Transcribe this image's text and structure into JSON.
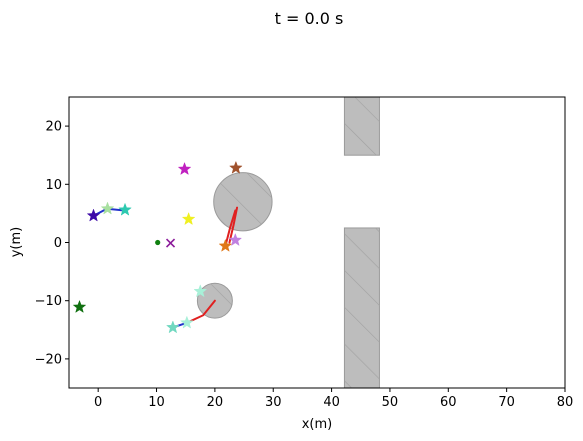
{
  "chart_data": {
    "type": "scatter",
    "title": "t = 0.0 s",
    "xlabel": "x(m)",
    "ylabel": "y(m)",
    "xlim": [
      -5,
      80
    ],
    "ylim": [
      -25,
      25
    ],
    "grid": false,
    "x_ticks": [
      0,
      10,
      20,
      30,
      40,
      50,
      60,
      70,
      80
    ],
    "y_ticks": [
      -20,
      -10,
      0,
      10,
      20
    ],
    "obstacles": {
      "walls": [
        {
          "x0": 42.2,
          "x1": 48.2,
          "y0": 15.0,
          "y1": 25.0
        },
        {
          "x0": 42.2,
          "x1": 48.2,
          "y0": -25.0,
          "y1": 2.5
        }
      ],
      "circles": [
        {
          "cx": 24.8,
          "cy": 7.0,
          "r": 5.0
        },
        {
          "cx": 20.0,
          "cy": -10.0,
          "r": 3.0
        }
      ]
    },
    "trajectories": [
      {
        "color": "#2233cc",
        "points": [
          [
            -0.8,
            4.6
          ],
          [
            1.5,
            5.8
          ],
          [
            4.5,
            5.5
          ]
        ]
      },
      {
        "color": "#e02020",
        "points": [
          [
            22.5,
            0.0
          ],
          [
            23.2,
            3.0
          ],
          [
            23.8,
            6.0
          ]
        ]
      },
      {
        "color": "#e02020",
        "points": [
          [
            21.8,
            -0.6
          ],
          [
            22.6,
            2.5
          ],
          [
            23.5,
            5.5
          ]
        ]
      },
      {
        "color": "#2233cc",
        "points": [
          [
            12.8,
            -14.6
          ],
          [
            15.2,
            -13.8
          ]
        ]
      },
      {
        "color": "#e02020",
        "points": [
          [
            15.2,
            -13.8
          ],
          [
            18.0,
            -12.5
          ],
          [
            20.0,
            -10.0
          ]
        ]
      }
    ],
    "stars": [
      {
        "x": -0.8,
        "y": 4.6,
        "color": "#3d0aa8"
      },
      {
        "x": 1.6,
        "y": 5.8,
        "color": "#a8e0a0"
      },
      {
        "x": 4.6,
        "y": 5.6,
        "color": "#2ec9b0"
      },
      {
        "x": 14.8,
        "y": 12.6,
        "color": "#c020c0"
      },
      {
        "x": 23.6,
        "y": 12.8,
        "color": "#a0522d"
      },
      {
        "x": 15.5,
        "y": 4.0,
        "color": "#f0f020"
      },
      {
        "x": 21.8,
        "y": -0.6,
        "color": "#e07818"
      },
      {
        "x": 23.5,
        "y": 0.4,
        "color": "#c080e0"
      },
      {
        "x": 17.5,
        "y": -8.4,
        "color": "#a8f0d8"
      },
      {
        "x": 12.8,
        "y": -14.6,
        "color": "#70d8c0"
      },
      {
        "x": 15.2,
        "y": -13.8,
        "color": "#a8f0d8"
      },
      {
        "x": -3.2,
        "y": -11.1,
        "color": "#107010"
      }
    ],
    "x_markers": [
      {
        "x": 12.4,
        "y": -0.1,
        "color": "#8b1a9a"
      }
    ],
    "dots": [
      {
        "x": 10.2,
        "y": 0.0,
        "color": "#108010"
      }
    ]
  }
}
